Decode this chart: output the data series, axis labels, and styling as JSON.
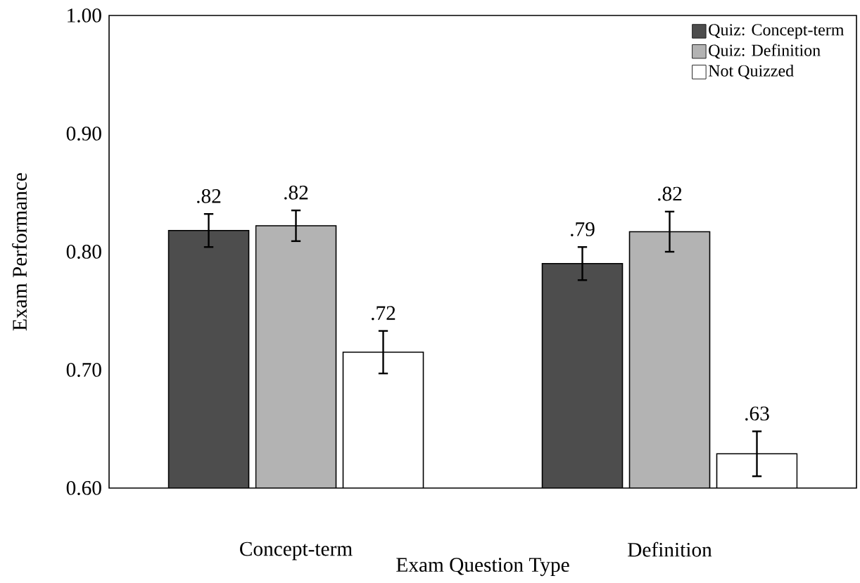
{
  "chart_data": {
    "type": "bar",
    "xlabel": "Exam Question Type",
    "ylabel": "Exam Performance",
    "categories": [
      "Concept-term",
      "Definition"
    ],
    "series": [
      {
        "name": "Quiz: Concept-term",
        "color": "#4d4d4d",
        "values": [
          0.818,
          0.79
        ],
        "errors": [
          0.014,
          0.014
        ],
        "value_labels": [
          ".82",
          ".79"
        ]
      },
      {
        "name": "Quiz: Definition",
        "color": "#b3b3b3",
        "values": [
          0.822,
          0.817
        ],
        "errors": [
          0.013,
          0.017
        ],
        "value_labels": [
          ".82",
          ".82"
        ]
      },
      {
        "name": "Not Quizzed",
        "color": "#ffffff",
        "values": [
          0.715,
          0.629
        ],
        "errors": [
          0.018,
          0.019
        ],
        "value_labels": [
          ".72",
          ".63"
        ]
      }
    ],
    "ylim": [
      0.6,
      1.0
    ],
    "yticks": [
      {
        "value": 0.6,
        "label": "0.60"
      },
      {
        "value": 0.7,
        "label": "0.70"
      },
      {
        "value": 0.8,
        "label": "0.80"
      },
      {
        "value": 0.9,
        "label": "0.90"
      },
      {
        "value": 1.0,
        "label": "1.00"
      }
    ],
    "legend": "top right"
  }
}
